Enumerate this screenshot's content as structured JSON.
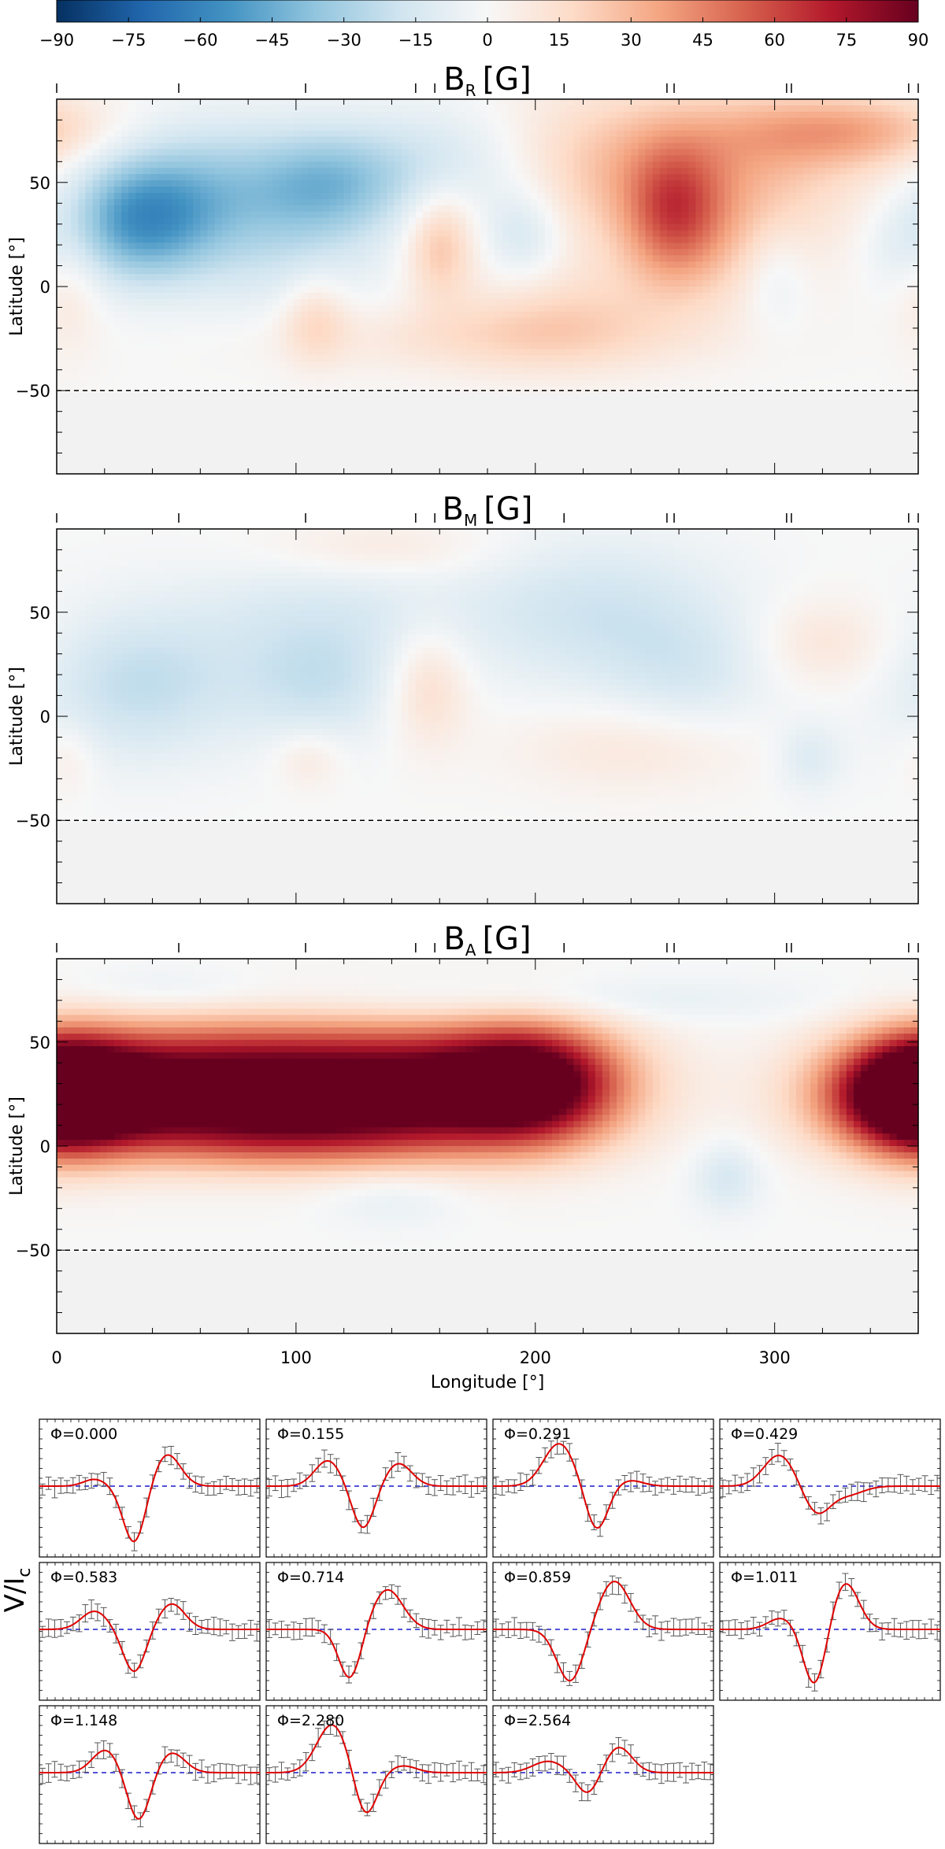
{
  "chart_data": [
    {
      "type": "colorbar",
      "ticks": [
        -90,
        -75,
        -60,
        -45,
        -30,
        -15,
        0,
        15,
        30,
        45,
        60,
        75,
        90
      ],
      "range": [
        -90,
        90
      ],
      "colormap": [
        "#053061",
        "#2166ac",
        "#4393c3",
        "#92c5de",
        "#d1e5f0",
        "#f7f7f7",
        "#fddbc7",
        "#f4a582",
        "#d6604d",
        "#b2182b",
        "#67001f"
      ]
    },
    {
      "type": "heatmap",
      "name": "BR",
      "title": "B",
      "title_sub": "R",
      "title_unit": "[G]",
      "ylabel": "Latitude [°]",
      "xlim": [
        0,
        360
      ],
      "ylim": [
        -90,
        90
      ],
      "yticks": [
        50,
        0,
        -50
      ],
      "cutoff_latitude": -50,
      "blobs": [
        {
          "lon": 35,
          "lat": 30,
          "value": -45,
          "slon": 22,
          "slat": 20
        },
        {
          "lon": 60,
          "lat": 50,
          "value": -25,
          "slon": 35,
          "slat": 22
        },
        {
          "lon": 115,
          "lat": 50,
          "value": -28,
          "slon": 22,
          "slat": 18
        },
        {
          "lon": 95,
          "lat": 20,
          "value": -15,
          "slon": 30,
          "slat": 25
        },
        {
          "lon": 165,
          "lat": 60,
          "value": -22,
          "slon": 30,
          "slat": 20
        },
        {
          "lon": 195,
          "lat": 25,
          "value": -18,
          "slon": 12,
          "slat": 16
        },
        {
          "lon": 160,
          "lat": 20,
          "value": 25,
          "slon": 10,
          "slat": 18
        },
        {
          "lon": 108,
          "lat": -15,
          "value": 18,
          "slon": 10,
          "slat": 15
        },
        {
          "lon": 255,
          "lat": 60,
          "value": 30,
          "slon": 60,
          "slat": 25
        },
        {
          "lon": 258,
          "lat": 35,
          "value": 35,
          "slon": 14,
          "slat": 22
        },
        {
          "lon": 270,
          "lat": 20,
          "value": 18,
          "slon": 30,
          "slat": 25
        },
        {
          "lon": 330,
          "lat": 75,
          "value": 28,
          "slon": 35,
          "slat": 12
        },
        {
          "lon": 210,
          "lat": -15,
          "value": 15,
          "slon": 30,
          "slat": 18
        },
        {
          "lon": 5,
          "lat": 5,
          "value": 12,
          "slon": 10,
          "slat": 25
        },
        {
          "lon": 300,
          "lat": 5,
          "value": -12,
          "slon": 10,
          "slat": 18
        },
        {
          "lon": 355,
          "lat": 20,
          "value": -10,
          "slon": 12,
          "slat": 15
        },
        {
          "lon": 180,
          "lat": -25,
          "value": 12,
          "slon": 60,
          "slat": 12
        }
      ]
    },
    {
      "type": "heatmap",
      "name": "BM",
      "title": "B",
      "title_sub": "M",
      "title_unit": "[G]",
      "ylabel": "Latitude [°]",
      "xlim": [
        0,
        360
      ],
      "ylim": [
        -90,
        90
      ],
      "yticks": [
        50,
        0,
        -50
      ],
      "cutoff_latitude": -50,
      "blobs": [
        {
          "lon": 35,
          "lat": 15,
          "value": -22,
          "slon": 30,
          "slat": 25
        },
        {
          "lon": 110,
          "lat": 15,
          "value": -18,
          "slon": 25,
          "slat": 20
        },
        {
          "lon": 110,
          "lat": 50,
          "value": -12,
          "slon": 40,
          "slat": 20
        },
        {
          "lon": 225,
          "lat": 50,
          "value": -18,
          "slon": 40,
          "slat": 25
        },
        {
          "lon": 265,
          "lat": 20,
          "value": -12,
          "slon": 25,
          "slat": 20
        },
        {
          "lon": 155,
          "lat": 15,
          "value": 18,
          "slon": 12,
          "slat": 20
        },
        {
          "lon": 135,
          "lat": 80,
          "value": 10,
          "slon": 35,
          "slat": 10
        },
        {
          "lon": 320,
          "lat": 35,
          "value": 12,
          "slon": 20,
          "slat": 15
        },
        {
          "lon": 240,
          "lat": -15,
          "value": 10,
          "slon": 35,
          "slat": 15
        },
        {
          "lon": 105,
          "lat": -20,
          "value": 10,
          "slon": 10,
          "slat": 10
        },
        {
          "lon": 315,
          "lat": -20,
          "value": -12,
          "slon": 10,
          "slat": 12
        },
        {
          "lon": 5,
          "lat": -20,
          "value": 8,
          "slon": 8,
          "slat": 12
        }
      ]
    },
    {
      "type": "heatmap",
      "name": "BA",
      "title": "B",
      "title_sub": "A",
      "title_unit": "[G]",
      "ylabel": "Latitude [°]",
      "xlabel": "Longitude [°]",
      "xticks": [
        0,
        100,
        200,
        300
      ],
      "xlim": [
        0,
        360
      ],
      "ylim": [
        -90,
        90
      ],
      "yticks": [
        50,
        0,
        -50
      ],
      "cutoff_latitude": -50,
      "blobs": [
        {
          "lon": 60,
          "lat": 30,
          "value": 80,
          "slon": 45,
          "slat": 20
        },
        {
          "lon": 150,
          "lat": 30,
          "value": 88,
          "slon": 50,
          "slat": 20
        },
        {
          "lon": 200,
          "lat": 30,
          "value": 70,
          "slon": 25,
          "slat": 20
        },
        {
          "lon": 360,
          "lat": 25,
          "value": 75,
          "slon": 30,
          "slat": 18
        },
        {
          "lon": 0,
          "lat": 25,
          "value": 60,
          "slon": 20,
          "slat": 20
        },
        {
          "lon": 100,
          "lat": 5,
          "value": 35,
          "slon": 60,
          "slat": 12
        },
        {
          "lon": 200,
          "lat": 70,
          "value": -10,
          "slon": 80,
          "slat": 8
        },
        {
          "lon": 280,
          "lat": -15,
          "value": -15,
          "slon": 10,
          "slat": 12
        },
        {
          "lon": 140,
          "lat": -25,
          "value": -8,
          "slon": 20,
          "slat": 10
        },
        {
          "lon": 45,
          "lat": 75,
          "value": -8,
          "slon": 30,
          "slat": 8
        }
      ]
    },
    {
      "type": "line",
      "name": "stokes-v-profiles",
      "ylabel": "V/I",
      "ylabel_sub": "c",
      "panels": [
        {
          "phase": "Φ=0.000",
          "bumps": [
            {
              "pos": 0.25,
              "amp": 0.12,
              "w": 0.05
            },
            {
              "pos": 0.43,
              "amp": -1.0,
              "w": 0.05
            },
            {
              "pos": 0.58,
              "amp": 0.56,
              "w": 0.06
            }
          ]
        },
        {
          "phase": "Φ=0.155",
          "bumps": [
            {
              "pos": 0.28,
              "amp": 0.45,
              "w": 0.06
            },
            {
              "pos": 0.44,
              "amp": -0.75,
              "w": 0.05
            },
            {
              "pos": 0.6,
              "amp": 0.4,
              "w": 0.06
            }
          ]
        },
        {
          "phase": "Φ=0.291",
          "bumps": [
            {
              "pos": 0.3,
              "amp": 0.75,
              "w": 0.07
            },
            {
              "pos": 0.47,
              "amp": -0.78,
              "w": 0.05
            },
            {
              "pos": 0.62,
              "amp": 0.1,
              "w": 0.06
            }
          ]
        },
        {
          "phase": "Φ=0.429",
          "bumps": [
            {
              "pos": 0.27,
              "amp": 0.55,
              "w": 0.07
            },
            {
              "pos": 0.44,
              "amp": -0.48,
              "w": 0.06
            },
            {
              "pos": 0.58,
              "amp": -0.15,
              "w": 0.07
            }
          ]
        },
        {
          "phase": "Φ=0.583",
          "bumps": [
            {
              "pos": 0.25,
              "amp": 0.32,
              "w": 0.06
            },
            {
              "pos": 0.43,
              "amp": -0.75,
              "w": 0.05
            },
            {
              "pos": 0.6,
              "amp": 0.45,
              "w": 0.06
            }
          ]
        },
        {
          "phase": "Φ=0.714",
          "bumps": [
            {
              "pos": 0.38,
              "amp": -0.88,
              "w": 0.05
            },
            {
              "pos": 0.55,
              "amp": 0.7,
              "w": 0.07
            }
          ]
        },
        {
          "phase": "Φ=0.859",
          "bumps": [
            {
              "pos": 0.35,
              "amp": -0.92,
              "w": 0.06
            },
            {
              "pos": 0.55,
              "amp": 0.85,
              "w": 0.07
            }
          ]
        },
        {
          "phase": "Φ=1.011",
          "bumps": [
            {
              "pos": 0.28,
              "amp": 0.2,
              "w": 0.06
            },
            {
              "pos": 0.43,
              "amp": -1.0,
              "w": 0.05
            },
            {
              "pos": 0.57,
              "amp": 0.82,
              "w": 0.06
            }
          ]
        },
        {
          "phase": "Φ=1.148",
          "bumps": [
            {
              "pos": 0.3,
              "amp": 0.4,
              "w": 0.06
            },
            {
              "pos": 0.45,
              "amp": -0.85,
              "w": 0.05
            },
            {
              "pos": 0.6,
              "amp": 0.35,
              "w": 0.06
            }
          ]
        },
        {
          "phase": "Φ=2.280",
          "bumps": [
            {
              "pos": 0.3,
              "amp": 0.85,
              "w": 0.07
            },
            {
              "pos": 0.45,
              "amp": -0.78,
              "w": 0.05
            },
            {
              "pos": 0.62,
              "amp": 0.12,
              "w": 0.06
            }
          ]
        },
        {
          "phase": "Φ=2.564",
          "bumps": [
            {
              "pos": 0.25,
              "amp": 0.2,
              "w": 0.07
            },
            {
              "pos": 0.43,
              "amp": -0.38,
              "w": 0.05
            },
            {
              "pos": 0.57,
              "amp": 0.45,
              "w": 0.06
            }
          ]
        }
      ]
    }
  ],
  "colors": {
    "model_line": "#e00000",
    "zero_line": "#1a1acc",
    "error_bars": "#555555",
    "masked_region": "#f2f2f2"
  },
  "observation_phase_longitudes": [
    0,
    51,
    104,
    150,
    158,
    212,
    255,
    258,
    305,
    307,
    356,
    360
  ]
}
